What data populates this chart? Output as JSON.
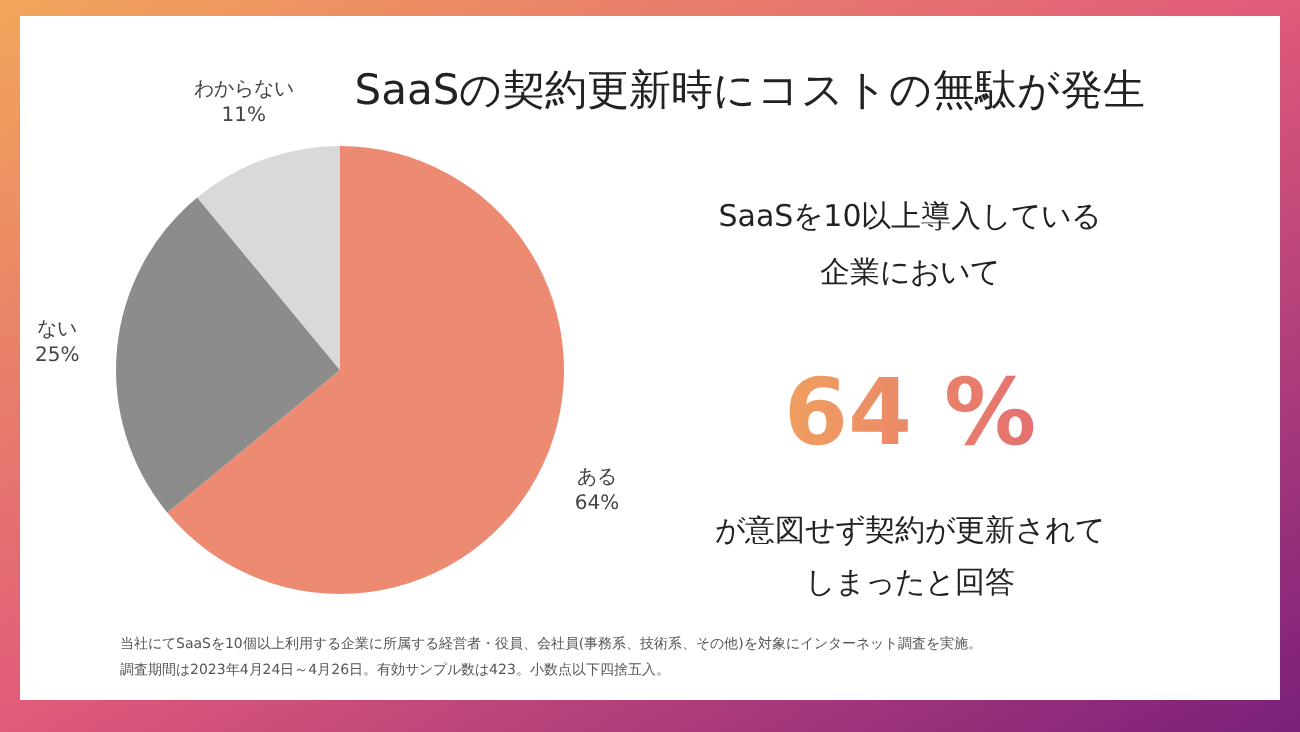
{
  "chart_data": {
    "type": "pie",
    "title": "SaaSの契約更新時にコストの無駄が発生",
    "categories": [
      "ある",
      "ない",
      "わからない"
    ],
    "values": [
      64,
      25,
      11
    ],
    "value_labels": [
      "64%",
      "25%",
      "11%"
    ],
    "colors": [
      "#ec8a72",
      "#8c8c8c",
      "#d9d9d9"
    ],
    "annotations": [
      "SaaSを10以上導入している",
      "企業において",
      "64 %",
      "が意図せず契約が更新されて",
      "しまったと回答",
      "当社にてSaaSを10個以上利用する企業に所属する経営者・役員、会社員(事務系、技術系、その他)を対象にインターネット調査を実施。",
      "調査期間は2023年4月24日～4月26日。有効サンプル数は423。小数点以下四捨五入。"
    ]
  }
}
